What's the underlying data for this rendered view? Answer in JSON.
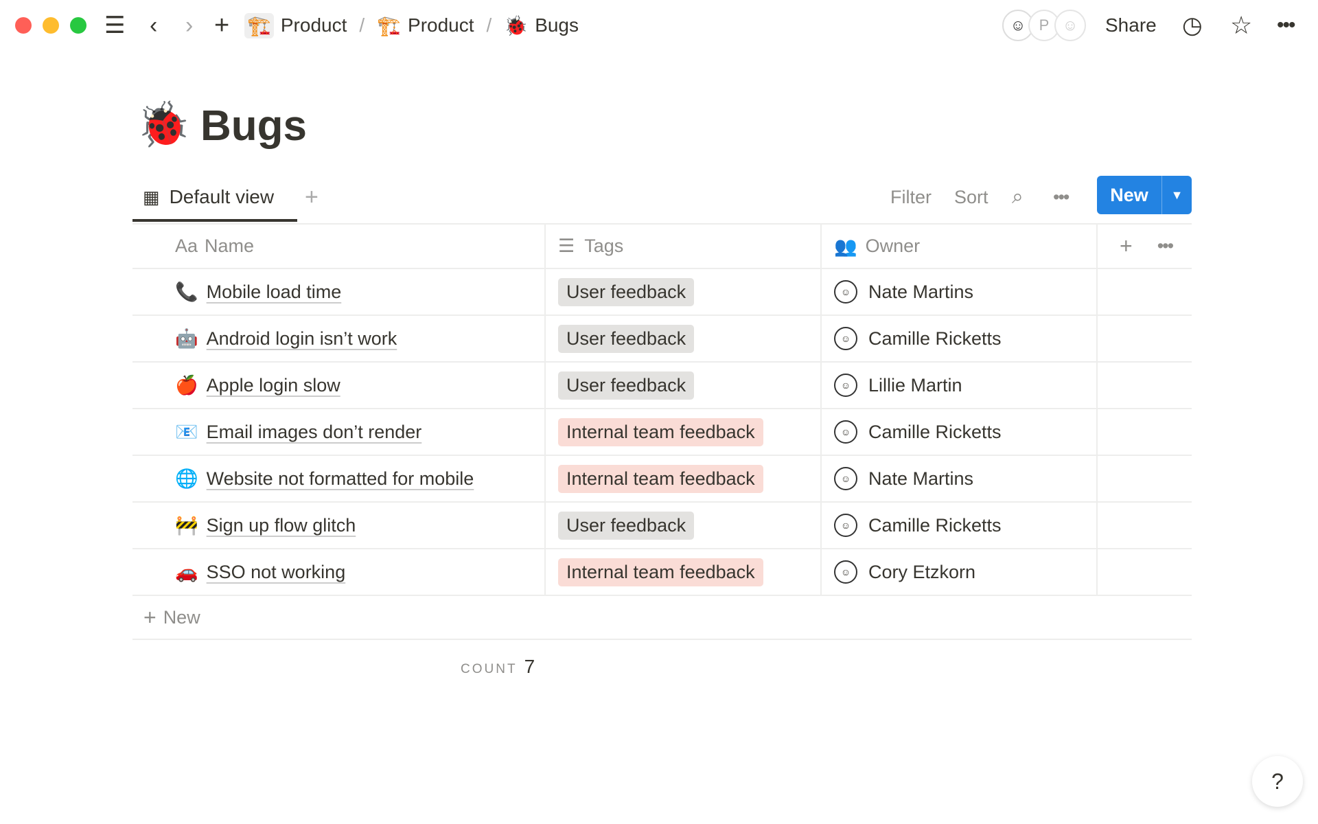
{
  "topbar": {
    "breadcrumbs": [
      {
        "icon": "🏗️",
        "label": "Product"
      },
      {
        "icon": "🏗️",
        "label": "Product"
      },
      {
        "icon": "🐞",
        "label": "Bugs"
      }
    ],
    "separator": "/",
    "avatar_letter": "P",
    "share": "Share"
  },
  "page": {
    "icon": "🐞",
    "title": "Bugs"
  },
  "view": {
    "tab": "Default view",
    "filter": "Filter",
    "sort": "Sort",
    "new": "New"
  },
  "table": {
    "headers": {
      "name": "Name",
      "name_icon": "Aa",
      "tags": "Tags",
      "owner": "Owner"
    },
    "rows": [
      {
        "icon": "📞",
        "name": "Mobile load time",
        "tag": "User feedback",
        "owner": "Nate Martins"
      },
      {
        "icon": "🤖",
        "name": "Android login isn’t work",
        "tag": "User feedback",
        "owner": "Camille Ricketts"
      },
      {
        "icon": "🍎",
        "name": "Apple login slow",
        "tag": "User feedback",
        "owner": "Lillie Martin"
      },
      {
        "icon": "📧",
        "name": "Email images don’t render",
        "tag": "Internal team feedback",
        "owner": "Camille Ricketts"
      },
      {
        "icon": "🌐",
        "name": "Website not formatted for mobile",
        "tag": "Internal team feedback",
        "owner": "Nate Martins"
      },
      {
        "icon": "🚧",
        "name": "Sign up flow glitch",
        "tag": "User feedback",
        "owner": "Camille Ricketts"
      },
      {
        "icon": "🚗",
        "name": "SSO not working",
        "tag": "Internal team feedback",
        "owner": "Cory Etzkorn"
      }
    ],
    "new_row": "New",
    "count_label": "COUNT",
    "count": "7"
  },
  "tag_colors": {
    "User feedback": "#e3e2e0",
    "Internal team feedback": "#fadcd6"
  },
  "accent": "#2383e2",
  "help": "?"
}
